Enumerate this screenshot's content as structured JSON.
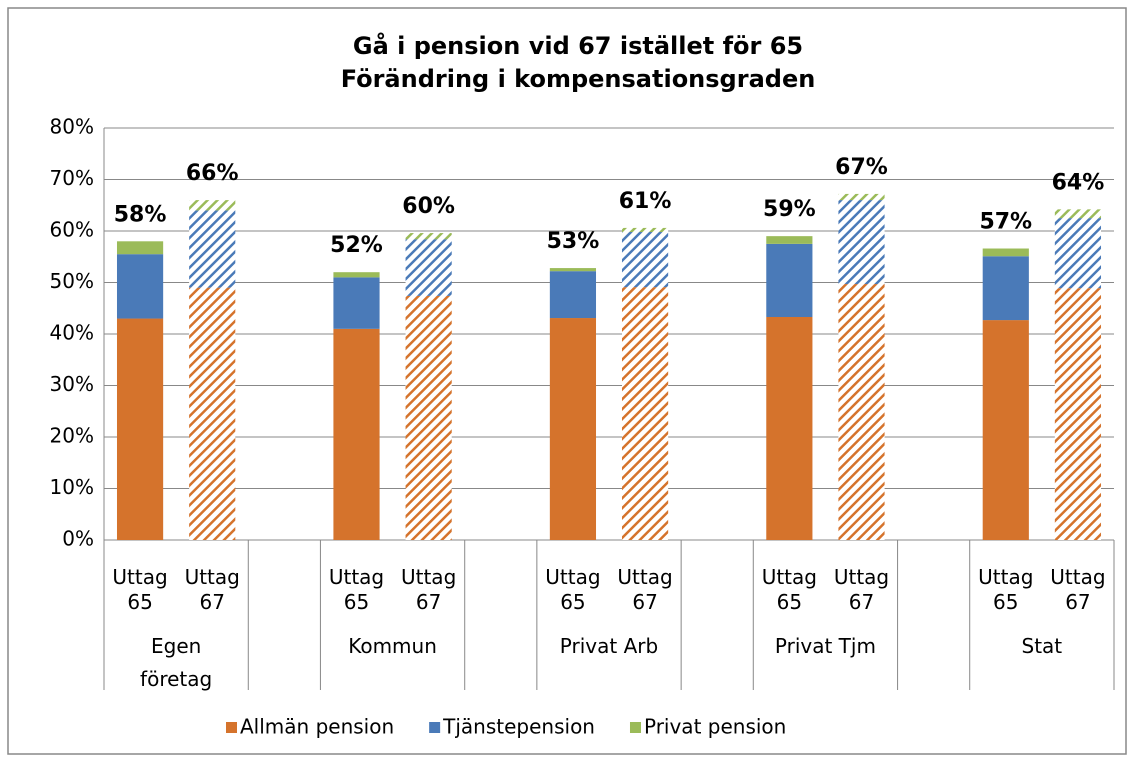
{
  "chart_data": {
    "type": "stacked_bar",
    "title": "Gå i pension vid 67 istället för 65",
    "subtitle": "Förändring i kompensationsgraden",
    "groups": [
      "Egen företag",
      "Kommun",
      "Privat Arb",
      "Privat Tjm",
      "Stat"
    ],
    "categories": [
      "Uttag 65",
      "Uttag 67",
      "Uttag 65",
      "Uttag 67",
      "Uttag 65",
      "Uttag 67",
      "Uttag 65",
      "Uttag 67",
      "Uttag 65",
      "Uttag 67"
    ],
    "hatched": [
      false,
      true,
      false,
      true,
      false,
      true,
      false,
      true,
      false,
      true
    ],
    "series": [
      {
        "name": "Allmän pension",
        "color": "#d5732c",
        "values": [
          43,
          49,
          41,
          47.4,
          43.1,
          49.1,
          43.3,
          49.7,
          42.7,
          48.9
        ]
      },
      {
        "name": "Tjänstepension",
        "color": "#4a7ab8",
        "values": [
          12.5,
          15,
          10,
          11,
          9.1,
          10.7,
          14.2,
          16.3,
          12.4,
          13.6
        ]
      },
      {
        "name": "Privat pension",
        "color": "#9bbb59",
        "values": [
          2.5,
          2,
          1,
          1.2,
          0.6,
          0.8,
          1.5,
          1.2,
          1.5,
          1.7
        ]
      }
    ],
    "totals": [
      58,
      66,
      52,
      60,
      53,
      61,
      59,
      67,
      57,
      64
    ],
    "total_labels": [
      "58%",
      "66%",
      "52%",
      "60%",
      "53%",
      "61%",
      "59%",
      "67%",
      "57%",
      "64%"
    ],
    "ylim": [
      0,
      80
    ],
    "yticks": [
      {
        "value": 0,
        "label": "0%"
      },
      {
        "value": 10,
        "label": "10%"
      },
      {
        "value": 20,
        "label": "20%"
      },
      {
        "value": 30,
        "label": "30%"
      },
      {
        "value": 40,
        "label": "40%"
      },
      {
        "value": 50,
        "label": "50%"
      },
      {
        "value": 60,
        "label": "60%"
      },
      {
        "value": 70,
        "label": "70%"
      },
      {
        "value": 80,
        "label": "80%"
      }
    ],
    "grid": true,
    "legend": "bottom"
  }
}
